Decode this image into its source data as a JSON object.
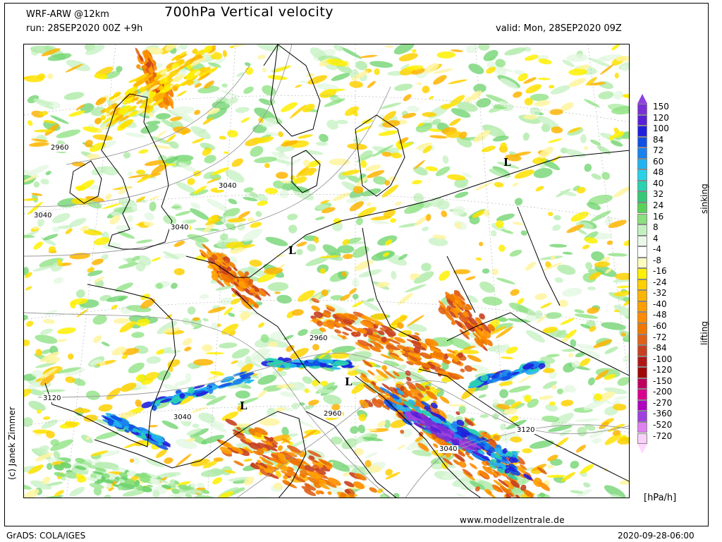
{
  "header": {
    "model": "WRF-ARW @12km",
    "title": "700hPa Vertical velocity",
    "run": "run: 28SEP2020 00Z +9h",
    "valid": "valid: Mon, 28SEP2020 09Z"
  },
  "map": {
    "contour_labels": [
      "2960",
      "3040",
      "3040",
      "3040",
      "2960",
      "3120",
      "3040",
      "2960",
      "3120",
      "3040"
    ],
    "low_markers": [
      "L",
      "L",
      "L",
      "L"
    ],
    "credit": "(c) Janek Zimmer"
  },
  "legend": {
    "levels": [
      "150",
      "120",
      "100",
      "84",
      "72",
      "60",
      "48",
      "40",
      "32",
      "24",
      "16",
      "8",
      "4",
      "-4",
      "-8",
      "-16",
      "-24",
      "-32",
      "-40",
      "-48",
      "-60",
      "-72",
      "-84",
      "-100",
      "-120",
      "-150",
      "-200",
      "-270",
      "-360",
      "-520",
      "-720"
    ],
    "colors": [
      "#7b2fd6",
      "#5a1fd8",
      "#2020dc",
      "#1050e6",
      "#1a82ee",
      "#22b4f0",
      "#28d2e6",
      "#2ad2b0",
      "#36c878",
      "#5ad25a",
      "#8ae07e",
      "#c4f0c0",
      "#eaf8e8",
      "#ffffff",
      "#fffcc0",
      "#fff000",
      "#ffd000",
      "#ffb400",
      "#ffa000",
      "#ff8c00",
      "#f07800",
      "#e06018",
      "#c84020",
      "#b01818",
      "#a00808",
      "#c00060",
      "#d8008c",
      "#b000c0",
      "#a040e0",
      "#e080f0",
      "#f8d0f8"
    ],
    "top_color": "#9040e0",
    "bottom_color": "#ffd8ff",
    "side_top": "sinking",
    "side_bottom": "lifting",
    "unit": "[hPa/h]"
  },
  "footer": {
    "website": "www.modellzentrale.de",
    "left": "GrADS: COLA/IGES",
    "right": "2020-09-28-06:00"
  }
}
